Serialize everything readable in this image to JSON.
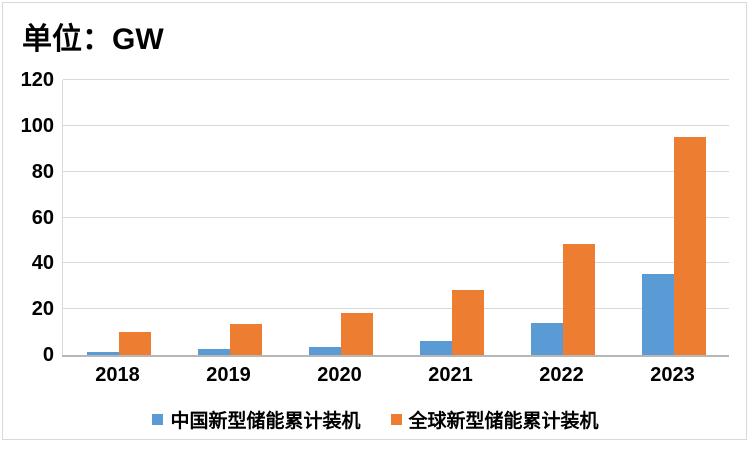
{
  "title": "单位：GW",
  "colors": {
    "series_china": "#5b9bd5",
    "series_global": "#ed7d31",
    "gridline": "#d9d9d9",
    "axis_line": "#b7b7b7",
    "chart_border": "#d9d9d9",
    "text": "#000000"
  },
  "chart_data": {
    "type": "bar",
    "title": "单位：GW",
    "categories": [
      "2018",
      "2019",
      "2020",
      "2021",
      "2022",
      "2023"
    ],
    "series": [
      {
        "name": "中国新型储能累计装机",
        "color": "#5b9bd5",
        "values": [
          1.2,
          2.5,
          3.5,
          6.2,
          13.8,
          35.2
        ]
      },
      {
        "name": "全球新型储能累计装机",
        "color": "#ed7d31",
        "values": [
          10.2,
          13.5,
          18.5,
          28.5,
          48.6,
          95.0
        ]
      }
    ],
    "xlabel": "",
    "ylabel": "",
    "ylim": [
      0,
      120
    ],
    "yticks": [
      0,
      20,
      40,
      60,
      80,
      100,
      120
    ],
    "grid": true,
    "legend_position": "bottom"
  },
  "legend": {
    "items": [
      {
        "label": "中国新型储能累计装机",
        "color": "#5b9bd5"
      },
      {
        "label": "全球新型储能累计装机",
        "color": "#ed7d31"
      }
    ]
  }
}
